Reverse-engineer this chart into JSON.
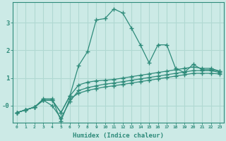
{
  "xlabel": "Humidex (Indice chaleur)",
  "x": [
    0,
    1,
    2,
    3,
    4,
    5,
    6,
    7,
    8,
    9,
    10,
    11,
    12,
    13,
    14,
    15,
    16,
    17,
    18,
    19,
    20,
    21,
    22,
    23
  ],
  "line1": [
    -0.25,
    -0.15,
    -0.05,
    0.2,
    0.2,
    -0.25,
    0.35,
    1.45,
    1.95,
    3.1,
    3.15,
    3.5,
    3.35,
    2.8,
    2.2,
    1.55,
    2.2,
    2.2,
    1.35,
    1.2,
    1.5,
    1.3,
    1.3,
    1.25
  ],
  "line2": [
    -0.25,
    -0.15,
    -0.05,
    0.2,
    0.2,
    -0.25,
    0.35,
    0.75,
    0.85,
    0.9,
    0.92,
    0.95,
    1.0,
    1.05,
    1.1,
    1.15,
    1.2,
    1.25,
    1.3,
    1.35,
    1.4,
    1.35,
    1.35,
    1.25
  ],
  "line3": [
    -0.25,
    -0.15,
    -0.05,
    0.2,
    0.0,
    -0.45,
    0.15,
    0.55,
    0.65,
    0.72,
    0.78,
    0.82,
    0.87,
    0.92,
    0.97,
    1.02,
    1.07,
    1.12,
    1.17,
    1.22,
    1.27,
    1.27,
    1.27,
    1.2
  ],
  "line4": [
    -0.25,
    -0.15,
    -0.05,
    0.25,
    0.25,
    -0.55,
    0.25,
    0.45,
    0.55,
    0.62,
    0.68,
    0.72,
    0.77,
    0.82,
    0.87,
    0.92,
    0.97,
    1.02,
    1.07,
    1.12,
    1.17,
    1.17,
    1.17,
    1.15
  ],
  "color": "#2e8b7a",
  "bg_color": "#cceae6",
  "grid_color": "#b0d8d2",
  "ylim": [
    -0.6,
    3.75
  ],
  "xlim": [
    -0.5,
    23.5
  ],
  "yticks": [
    0,
    1,
    2,
    3
  ],
  "ytick_labels": [
    "-0",
    "1",
    "2",
    "3"
  ]
}
